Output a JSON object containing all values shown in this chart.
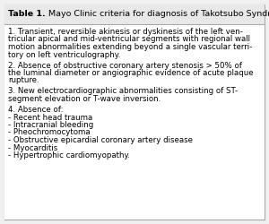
{
  "title_bold": "Table 1.",
  "title_normal": " Mayo Clinic criteria for diagnosis of Takotsubo Syndrome.",
  "background_color": "#f0f0f0",
  "title_bg_color": "#e8e8e8",
  "body_bg_color": "#ffffff",
  "border_color": "#aaaaaa",
  "divider_color": "#aaaaaa",
  "title_fontsize": 6.8,
  "body_fontsize": 6.2,
  "items": [
    [
      "1. Transient, reversible akinesis or dyskinesis of the left ven-",
      "tricular apical and mid-ventricular segments with regional wall",
      "motion abnormalities extending beyond a single vascular terri-",
      "tory on left ventriculography."
    ],
    [
      "2. Absence of obstructive coronary artery stenosis > 50% of",
      "the luminal diameter or angiographic evidence of acute plaque",
      "rupture."
    ],
    [
      "3. New electrocardiographic abnormalities consisting of ST-",
      "segment elevation or T-wave inversion."
    ],
    [
      "4. Absence of:",
      "- Recent head trauma",
      "- Intracranial bleeding",
      "- Pheochromocytoma",
      "- Obstructive epicardial coronary artery disease",
      "- Myocarditis",
      "- Hypertrophic cardiomyopathy."
    ]
  ]
}
